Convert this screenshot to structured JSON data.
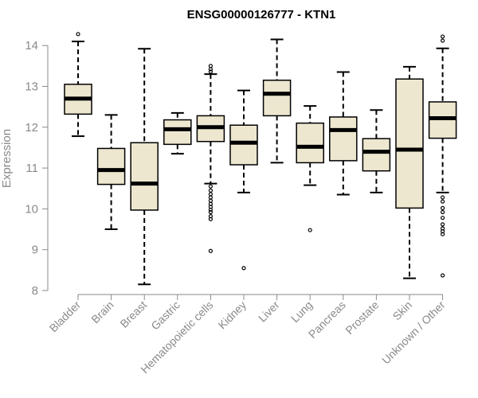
{
  "chart_data": {
    "type": "box",
    "title": "ENSG00000126777 - KTN1",
    "xlabel": "",
    "ylabel": "Expression",
    "ylim": [
      8,
      14.2
    ],
    "yticks": [
      8,
      9,
      10,
      11,
      12,
      13,
      14
    ],
    "grid": false,
    "colors": {
      "box_fill": "#ede7d0",
      "box_stroke": "#000000",
      "axis": "#8a8a8a",
      "median": "#000000"
    },
    "categories": [
      "Bladder",
      "Brain",
      "Breast",
      "Gastric",
      "Hematopoietic cells",
      "Kidney",
      "Liver",
      "Lung",
      "Pancreas",
      "Prostate",
      "Skin",
      "Unknown / Other"
    ],
    "boxes": [
      {
        "category": "Bladder",
        "min": 11.78,
        "q1": 12.32,
        "median": 12.7,
        "q3": 13.05,
        "max": 14.1,
        "outliers": [
          14.28
        ]
      },
      {
        "category": "Brain",
        "min": 9.5,
        "q1": 10.6,
        "median": 10.95,
        "q3": 11.48,
        "max": 12.3,
        "outliers": []
      },
      {
        "category": "Breast",
        "min": 8.15,
        "q1": 9.97,
        "median": 10.62,
        "q3": 11.62,
        "max": 13.92,
        "outliers": []
      },
      {
        "category": "Gastric",
        "min": 11.35,
        "q1": 11.58,
        "median": 11.95,
        "q3": 12.18,
        "max": 12.35,
        "outliers": []
      },
      {
        "category": "Hematopoietic cells",
        "min": 10.62,
        "q1": 11.65,
        "median": 12.0,
        "q3": 12.28,
        "max": 13.3,
        "outliers": [
          13.5,
          13.42,
          13.36,
          10.55,
          10.45,
          10.36,
          10.28,
          10.2,
          10.12,
          10.05,
          9.98,
          9.92,
          9.82,
          9.75,
          8.97
        ]
      },
      {
        "category": "Kidney",
        "min": 10.4,
        "q1": 11.08,
        "median": 11.62,
        "q3": 12.05,
        "max": 12.9,
        "outliers": [
          8.55
        ]
      },
      {
        "category": "Liver",
        "min": 11.13,
        "q1": 12.28,
        "median": 12.82,
        "q3": 13.15,
        "max": 14.15,
        "outliers": []
      },
      {
        "category": "Lung",
        "min": 10.58,
        "q1": 11.13,
        "median": 11.52,
        "q3": 12.1,
        "max": 12.52,
        "outliers": [
          9.48
        ]
      },
      {
        "category": "Pancreas",
        "min": 10.35,
        "q1": 11.18,
        "median": 11.93,
        "q3": 12.25,
        "max": 13.35,
        "outliers": []
      },
      {
        "category": "Prostate",
        "min": 10.4,
        "q1": 10.93,
        "median": 11.4,
        "q3": 11.72,
        "max": 12.42,
        "outliers": []
      },
      {
        "category": "Skin",
        "min": 8.3,
        "q1": 10.02,
        "median": 11.45,
        "q3": 13.18,
        "max": 13.48,
        "outliers": []
      },
      {
        "category": "Unknown / Other",
        "min": 10.4,
        "q1": 11.73,
        "median": 12.22,
        "q3": 12.62,
        "max": 13.93,
        "outliers": [
          14.22,
          14.12,
          10.28,
          10.18,
          10.02,
          9.92,
          9.78,
          9.62,
          9.52,
          9.45,
          9.38,
          8.37
        ]
      }
    ]
  }
}
